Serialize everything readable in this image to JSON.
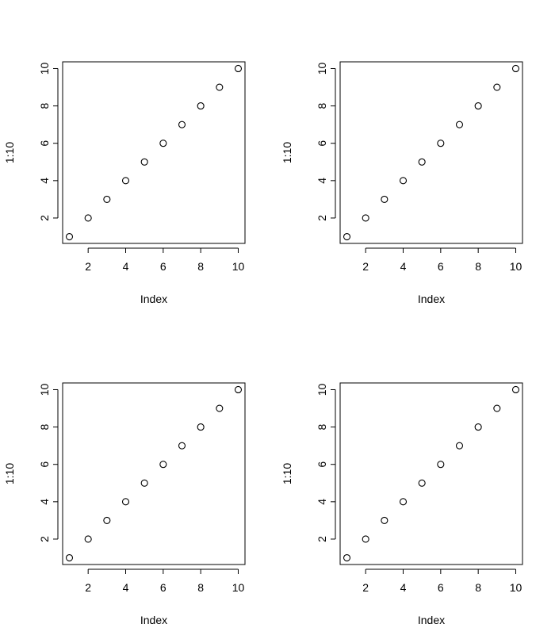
{
  "chart_data": [
    {
      "type": "scatter",
      "xlabel": "Index",
      "ylabel": "1:10",
      "x": [
        1,
        2,
        3,
        4,
        5,
        6,
        7,
        8,
        9,
        10
      ],
      "y": [
        1,
        2,
        3,
        4,
        5,
        6,
        7,
        8,
        9,
        10
      ],
      "xticks": [
        2,
        4,
        6,
        8,
        10
      ],
      "yticks": [
        2,
        4,
        6,
        8,
        10
      ],
      "xlim": [
        0.64,
        10.36
      ],
      "ylim": [
        0.64,
        10.36
      ],
      "grid": false,
      "marker": "open-circle"
    },
    {
      "type": "scatter",
      "xlabel": "Index",
      "ylabel": "1:10",
      "x": [
        1,
        2,
        3,
        4,
        5,
        6,
        7,
        8,
        9,
        10
      ],
      "y": [
        1,
        2,
        3,
        4,
        5,
        6,
        7,
        8,
        9,
        10
      ],
      "xticks": [
        2,
        4,
        6,
        8,
        10
      ],
      "yticks": [
        2,
        4,
        6,
        8,
        10
      ],
      "xlim": [
        0.64,
        10.36
      ],
      "ylim": [
        0.64,
        10.36
      ],
      "grid": false,
      "marker": "open-circle"
    },
    {
      "type": "scatter",
      "xlabel": "Index",
      "ylabel": "1:10",
      "x": [
        1,
        2,
        3,
        4,
        5,
        6,
        7,
        8,
        9,
        10
      ],
      "y": [
        1,
        2,
        3,
        4,
        5,
        6,
        7,
        8,
        9,
        10
      ],
      "xticks": [
        2,
        4,
        6,
        8,
        10
      ],
      "yticks": [
        2,
        4,
        6,
        8,
        10
      ],
      "xlim": [
        0.64,
        10.36
      ],
      "ylim": [
        0.64,
        10.36
      ],
      "grid": false,
      "marker": "open-circle"
    },
    {
      "type": "scatter",
      "xlabel": "Index",
      "ylabel": "1:10",
      "x": [
        1,
        2,
        3,
        4,
        5,
        6,
        7,
        8,
        9,
        10
      ],
      "y": [
        1,
        2,
        3,
        4,
        5,
        6,
        7,
        8,
        9,
        10
      ],
      "xticks": [
        2,
        4,
        6,
        8,
        10
      ],
      "yticks": [
        2,
        4,
        6,
        8,
        10
      ],
      "xlim": [
        0.64,
        10.36
      ],
      "ylim": [
        0.64,
        10.36
      ],
      "grid": false,
      "marker": "open-circle"
    }
  ]
}
